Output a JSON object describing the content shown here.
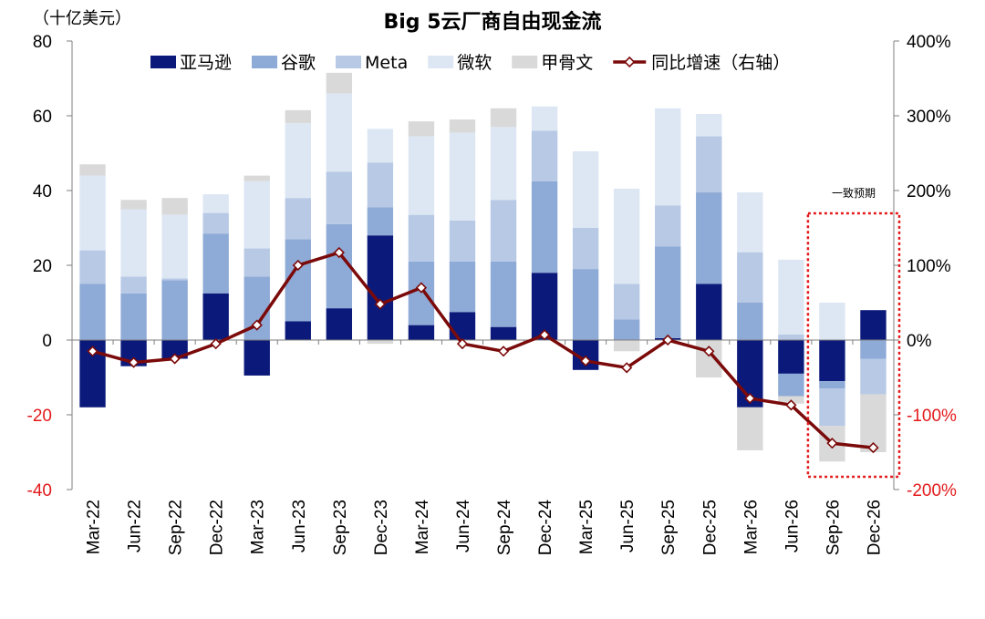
{
  "unit_label": "（十亿美元）",
  "chart_data": {
    "type": "bar",
    "subtype": "stacked-bar-with-line",
    "title": "Big 5云厂商自由现金流",
    "xlabel": "",
    "ylabel": "（十亿美元）",
    "ylim": [
      -40,
      80
    ],
    "y_ticks": [
      "80",
      "60",
      "40",
      "20",
      "0",
      "-20",
      "-40"
    ],
    "y2lim": [
      -2.0,
      4.0
    ],
    "y2_ticks": [
      "400%",
      "300%",
      "200%",
      "100%",
      "0%",
      "-100%",
      "-200%"
    ],
    "categories": [
      "Mar-22",
      "Jun-22",
      "Sep-22",
      "Dec-22",
      "Mar-23",
      "Jun-23",
      "Sep-23",
      "Dec-23",
      "Mar-24",
      "Jun-24",
      "Sep-24",
      "Dec-24",
      "Mar-25",
      "Jun-25",
      "Sep-25",
      "Dec-25",
      "Mar-26",
      "Jun-26",
      "Sep-26",
      "Dec-26"
    ],
    "series": [
      {
        "name": "亚马逊",
        "color": "#0b1a7a",
        "values": [
          -18,
          -7,
          -5,
          12.5,
          -9.5,
          5,
          8.5,
          28,
          4,
          7.5,
          3.5,
          18,
          -8,
          0,
          0.5,
          15,
          -18,
          -9,
          -11,
          8
        ]
      },
      {
        "name": "谷歌",
        "color": "#8eaad6",
        "values": [
          15,
          12.5,
          16,
          16,
          17,
          22,
          22.5,
          7.5,
          17,
          13.5,
          17.5,
          24.5,
          19,
          5.5,
          24.5,
          24.5,
          10,
          -6,
          -2,
          -5
        ]
      },
      {
        "name": "Meta",
        "color": "#b7c9e5",
        "values": [
          9,
          4.5,
          0.5,
          5.5,
          7.5,
          11,
          14,
          12,
          12.5,
          11,
          16.5,
          13.5,
          11,
          9.5,
          11,
          15,
          13.5,
          1.5,
          -10,
          -9.5
        ]
      },
      {
        "name": "微软",
        "color": "#dde7f4",
        "values": [
          20,
          18,
          17,
          5,
          18,
          20,
          21,
          9,
          21,
          23.5,
          19.5,
          6.5,
          20.5,
          25.5,
          26,
          6,
          16,
          20,
          10,
          0
        ]
      },
      {
        "name": "甲骨文",
        "color": "#d9d9d9",
        "values": [
          3,
          2.5,
          4.5,
          0,
          1.5,
          3.5,
          5.5,
          -1,
          4,
          3.5,
          5,
          0,
          0,
          -3,
          0,
          -10,
          -11.5,
          -2,
          -9.5,
          -15.5
        ]
      }
    ],
    "line": {
      "name": "同比增速（右轴）",
      "color": "#7b0a0a",
      "values": [
        -0.15,
        -0.3,
        -0.25,
        -0.05,
        0.2,
        1.0,
        1.17,
        0.48,
        0.7,
        -0.05,
        -0.15,
        0.07,
        -0.28,
        -0.37,
        0.0,
        -0.15,
        -0.78,
        -0.87,
        -1.38,
        -1.44
      ]
    },
    "annotation": {
      "text": "一致预期",
      "start_index": 18,
      "end_index": 19,
      "color": "#e31a1c"
    },
    "legend_position": "top",
    "grid": false
  }
}
